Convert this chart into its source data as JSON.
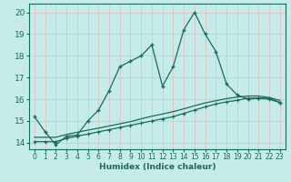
{
  "xlabel": "Humidex (Indice chaleur)",
  "x_ticks": [
    0,
    1,
    2,
    3,
    4,
    5,
    6,
    7,
    8,
    9,
    10,
    11,
    12,
    13,
    14,
    15,
    16,
    17,
    18,
    19,
    20,
    21,
    22,
    23
  ],
  "ylim": [
    13.7,
    20.4
  ],
  "xlim": [
    -0.5,
    23.5
  ],
  "yticks": [
    14,
    15,
    16,
    17,
    18,
    19,
    20
  ],
  "bg_color": "#c5ece8",
  "grid_color": "#dcc8c8",
  "line_color": "#1a6b5a",
  "line1_x": [
    0,
    1,
    2,
    3,
    4,
    5,
    6,
    7,
    8,
    9,
    10,
    11,
    12,
    13,
    14,
    15,
    16,
    17,
    18,
    19,
    20,
    21,
    22,
    23
  ],
  "line1_y": [
    15.2,
    14.5,
    13.9,
    14.3,
    14.35,
    15.0,
    15.5,
    16.4,
    17.5,
    17.75,
    18.0,
    18.5,
    16.6,
    17.5,
    19.2,
    20.0,
    19.0,
    18.2,
    16.7,
    16.2,
    16.0,
    16.05,
    16.05,
    15.85
  ],
  "line2_x": [
    0,
    1,
    2,
    3,
    4,
    5,
    6,
    7,
    8,
    9,
    10,
    11,
    12,
    13,
    14,
    15,
    16,
    17,
    18,
    19,
    20,
    21,
    22,
    23
  ],
  "line2_y": [
    14.05,
    14.05,
    14.05,
    14.2,
    14.3,
    14.4,
    14.5,
    14.6,
    14.7,
    14.8,
    14.9,
    15.0,
    15.1,
    15.2,
    15.35,
    15.5,
    15.65,
    15.78,
    15.88,
    15.95,
    16.05,
    16.05,
    16.0,
    15.85
  ],
  "line3_x": [
    0,
    1,
    2,
    3,
    4,
    5,
    6,
    7,
    8,
    9,
    10,
    11,
    12,
    13,
    14,
    15,
    16,
    17,
    18,
    19,
    20,
    21,
    22,
    23
  ],
  "line3_y": [
    14.25,
    14.25,
    14.25,
    14.38,
    14.48,
    14.58,
    14.67,
    14.77,
    14.87,
    14.97,
    15.1,
    15.22,
    15.32,
    15.43,
    15.56,
    15.7,
    15.83,
    15.93,
    16.03,
    16.1,
    16.15,
    16.15,
    16.08,
    15.95
  ]
}
